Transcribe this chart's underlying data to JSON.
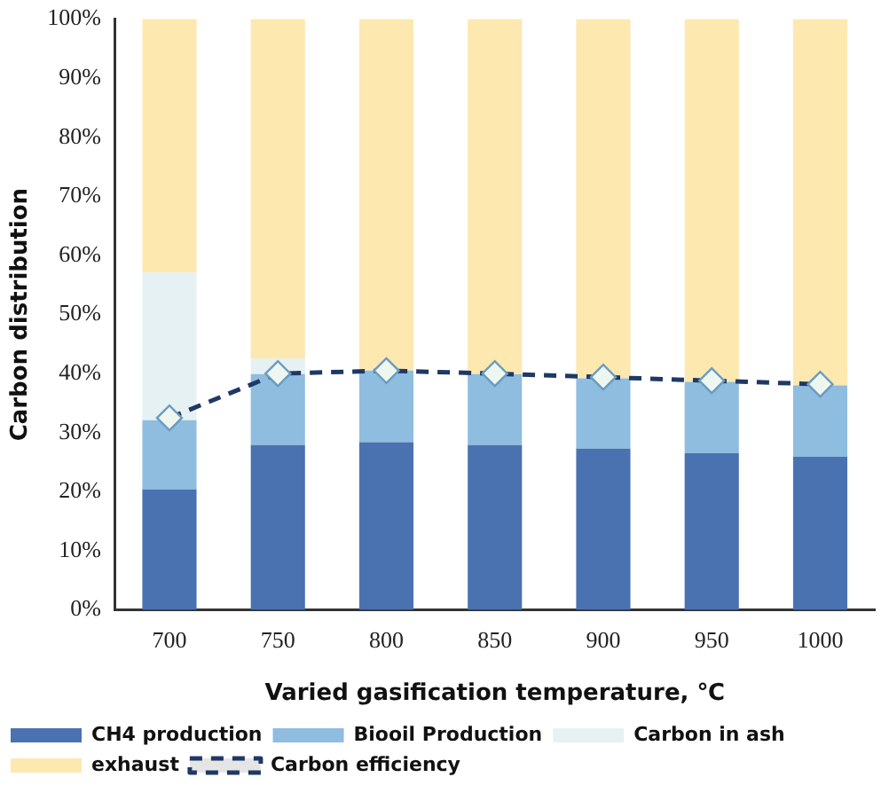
{
  "chart_data": {
    "type": "bar",
    "stacked": true,
    "xlabel": "Varied gasification temperature, ℃",
    "ylabel": "Carbon distribution",
    "categories": [
      "700",
      "750",
      "800",
      "850",
      "900",
      "950",
      "1000"
    ],
    "series": [
      {
        "name": "CH4 production",
        "color": "#4a72b0",
        "values": [
          20.4,
          27.9,
          28.4,
          27.9,
          27.3,
          26.5,
          25.9
        ]
      },
      {
        "name": "Biooil Production",
        "color": "#8fbde0",
        "values": [
          11.7,
          12,
          12.1,
          12,
          11.9,
          12.1,
          12.1
        ]
      },
      {
        "name": "Carbon in ash",
        "color": "#e6f1f3",
        "values": [
          25,
          2.7,
          0,
          0,
          0,
          0,
          0
        ]
      },
      {
        "name": "exhaust",
        "color": "#fde8b0",
        "values": [
          42.9,
          57.4,
          59.5,
          60.1,
          60.8,
          61.4,
          62
        ]
      },
      {
        "name": "Carbon efficiency",
        "type": "line",
        "color": "#1f3864",
        "line_style": "dashed",
        "marker": "diamond",
        "values": [
          32.5,
          40,
          40.5,
          40,
          39.4,
          38.8,
          38.2
        ]
      }
    ],
    "ylim": [
      0,
      100
    ],
    "yticks": [
      {
        "value": 0,
        "label": "0%"
      },
      {
        "value": 10,
        "label": "10%"
      },
      {
        "value": 20,
        "label": "20%"
      },
      {
        "value": 30,
        "label": "30%"
      },
      {
        "value": 40,
        "label": "40%"
      },
      {
        "value": 50,
        "label": "50%"
      },
      {
        "value": 60,
        "label": "60%"
      },
      {
        "value": 70,
        "label": "70%"
      },
      {
        "value": 80,
        "label": "80%"
      },
      {
        "value": 90,
        "label": "90%"
      },
      {
        "value": 100,
        "label": "100%"
      }
    ],
    "grid": false,
    "legend": "bottom"
  }
}
